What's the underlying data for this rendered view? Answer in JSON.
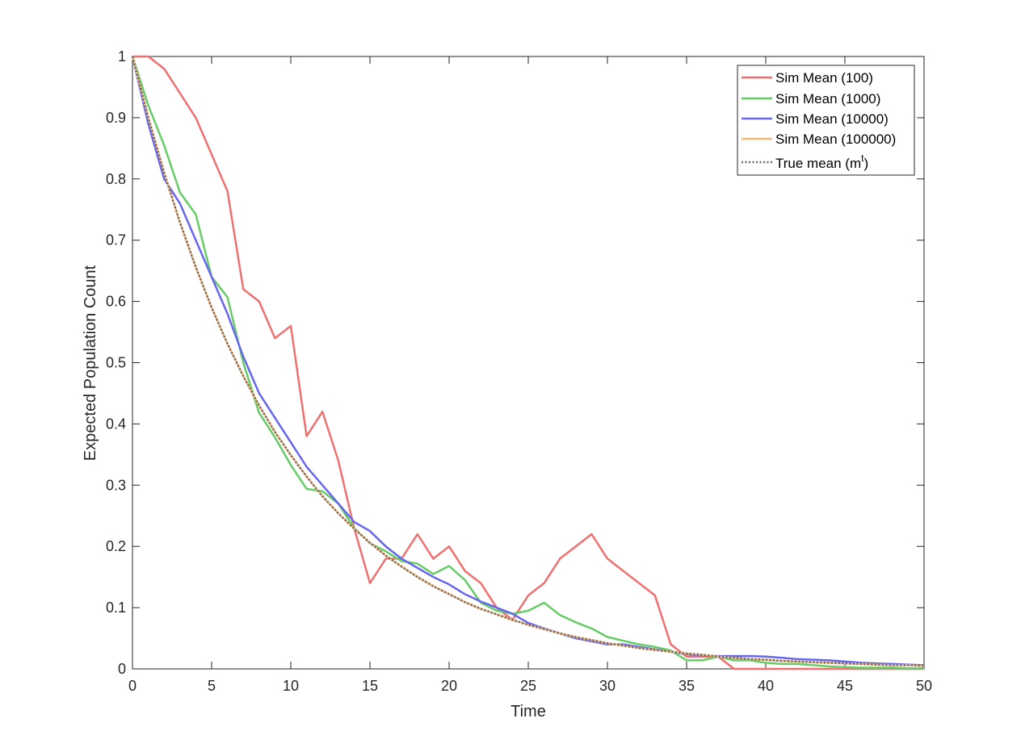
{
  "chart_data": {
    "type": "line",
    "title": "",
    "xlabel": "Time",
    "ylabel": "Expected Population Count",
    "xlim": [
      0,
      50
    ],
    "ylim": [
      0,
      1
    ],
    "xticks": [
      0,
      5,
      10,
      15,
      20,
      25,
      30,
      35,
      40,
      45,
      50
    ],
    "yticks": [
      0,
      0.1,
      0.2,
      0.3,
      0.4,
      0.5,
      0.6,
      0.7,
      0.8,
      0.9,
      1
    ],
    "ytick_labels": [
      "0",
      "0.1",
      "0.2",
      "0.3",
      "0.4",
      "0.5",
      "0.6",
      "0.7",
      "0.8",
      "0.9",
      "1"
    ],
    "legend_position": "top-right",
    "grid": false,
    "x": [
      0,
      1,
      2,
      3,
      4,
      5,
      6,
      7,
      8,
      9,
      10,
      11,
      12,
      13,
      14,
      15,
      16,
      17,
      18,
      19,
      20,
      21,
      22,
      23,
      24,
      25,
      26,
      27,
      28,
      29,
      30,
      31,
      32,
      33,
      34,
      35,
      36,
      37,
      38,
      39,
      40,
      41,
      42,
      43,
      44,
      45,
      46,
      47,
      48,
      49,
      50
    ],
    "series": [
      {
        "name": "Sim Mean (100)",
        "color": "#f07070",
        "style": "solid",
        "values": [
          1,
          1,
          0.98,
          0.94,
          0.9,
          0.84,
          0.78,
          0.62,
          0.6,
          0.54,
          0.56,
          0.38,
          0.42,
          0.34,
          0.23,
          0.14,
          0.18,
          0.18,
          0.22,
          0.18,
          0.2,
          0.16,
          0.14,
          0.1,
          0.08,
          0.12,
          0.14,
          0.18,
          0.2,
          0.22,
          0.18,
          0.16,
          0.14,
          0.12,
          0.04,
          0.02,
          0.02,
          0.02,
          0,
          0,
          0,
          0,
          0,
          0,
          0,
          0,
          0,
          0,
          0,
          0,
          0
        ]
      },
      {
        "name": "Sim Mean (1000)",
        "color": "#66cc66",
        "style": "solid",
        "values": [
          1,
          0.92,
          0.855,
          0.778,
          0.742,
          0.64,
          0.607,
          0.5,
          0.418,
          0.378,
          0.333,
          0.294,
          0.29,
          0.27,
          0.23,
          0.205,
          0.192,
          0.176,
          0.172,
          0.155,
          0.168,
          0.145,
          0.108,
          0.095,
          0.09,
          0.095,
          0.108,
          0.088,
          0.076,
          0.066,
          0.052,
          0.046,
          0.04,
          0.036,
          0.03,
          0.014,
          0.014,
          0.02,
          0.014,
          0.014,
          0.01,
          0.008,
          0.008,
          0.006,
          0.004,
          0.003,
          0.002,
          0.002,
          0.002,
          0.001,
          0.001
        ]
      },
      {
        "name": "Sim Mean (10000)",
        "color": "#6666f0",
        "style": "solid",
        "values": [
          1,
          0.89,
          0.8,
          0.76,
          0.7,
          0.64,
          0.58,
          0.51,
          0.45,
          0.41,
          0.37,
          0.33,
          0.3,
          0.27,
          0.24,
          0.225,
          0.2,
          0.18,
          0.165,
          0.15,
          0.138,
          0.122,
          0.11,
          0.1,
          0.09,
          0.075,
          0.066,
          0.058,
          0.05,
          0.045,
          0.04,
          0.04,
          0.036,
          0.032,
          0.028,
          0.024,
          0.022,
          0.021,
          0.021,
          0.021,
          0.02,
          0.018,
          0.016,
          0.015,
          0.014,
          0.012,
          0.01,
          0.009,
          0.008,
          0.007,
          0.006
        ]
      },
      {
        "name": "Sim Mean (100000)",
        "color": "#f5b87a",
        "style": "solid",
        "values": [
          1,
          0.9,
          0.81,
          0.729,
          0.656,
          0.59,
          0.531,
          0.478,
          0.43,
          0.387,
          0.349,
          0.314,
          0.282,
          0.254,
          0.229,
          0.206,
          0.185,
          0.167,
          0.15,
          0.135,
          0.122,
          0.109,
          0.098,
          0.089,
          0.08,
          0.072,
          0.065,
          0.058,
          0.052,
          0.047,
          0.042,
          0.038,
          0.034,
          0.031,
          0.028,
          0.025,
          0.023,
          0.02,
          0.018,
          0.016,
          0.015,
          0.013,
          0.012,
          0.011,
          0.01,
          0.009,
          0.008,
          0.007,
          0.006,
          0.006,
          0.005
        ]
      },
      {
        "name": "True mean (m",
        "name_sup": "t",
        "name_suffix": ")",
        "color": "#666666",
        "style": "dotted",
        "values": [
          1,
          0.9,
          0.81,
          0.729,
          0.656,
          0.59,
          0.531,
          0.478,
          0.43,
          0.387,
          0.349,
          0.314,
          0.282,
          0.254,
          0.229,
          0.206,
          0.185,
          0.167,
          0.15,
          0.135,
          0.122,
          0.109,
          0.098,
          0.089,
          0.08,
          0.072,
          0.065,
          0.058,
          0.052,
          0.047,
          0.042,
          0.038,
          0.034,
          0.031,
          0.028,
          0.025,
          0.023,
          0.02,
          0.018,
          0.016,
          0.015,
          0.013,
          0.012,
          0.011,
          0.01,
          0.009,
          0.008,
          0.007,
          0.006,
          0.006,
          0.005
        ]
      }
    ]
  }
}
